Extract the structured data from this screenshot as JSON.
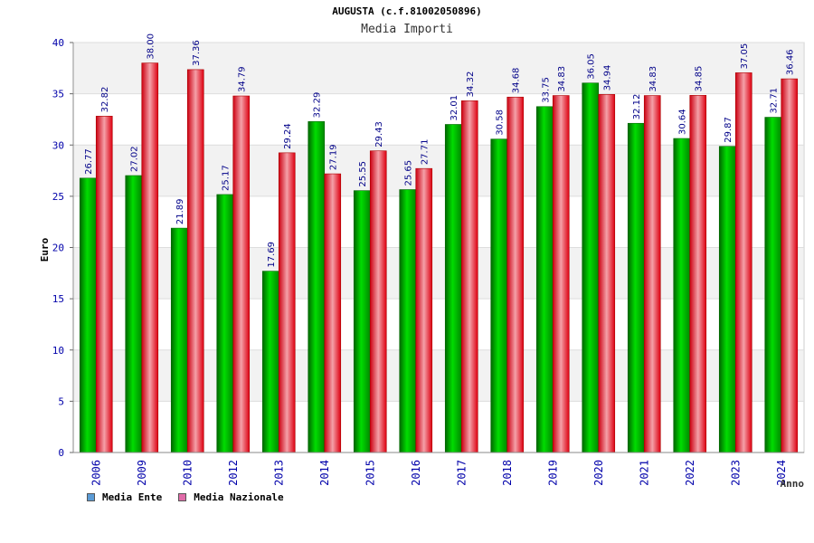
{
  "chart_data": {
    "type": "bar",
    "title": "AUGUSTA (c.f.81002050896)",
    "subtitle": "Media Importi",
    "xlabel": "Anno",
    "ylabel": "Euro",
    "ylim": [
      0,
      40
    ],
    "yticks": [
      0,
      5,
      10,
      15,
      20,
      25,
      30,
      35,
      40
    ],
    "grid": true,
    "legend_position": "bottom-left",
    "categories": [
      "2006",
      "2009",
      "2010",
      "2012",
      "2013",
      "2014",
      "2015",
      "2016",
      "2017",
      "2018",
      "2019",
      "2020",
      "2021",
      "2022",
      "2023",
      "2024"
    ],
    "series": [
      {
        "name": "Media Ente",
        "color": "#00cc00",
        "legend_color": "#5b9bd5",
        "values": [
          26.77,
          27.02,
          21.89,
          25.17,
          17.69,
          32.29,
          25.55,
          25.65,
          32.01,
          30.58,
          33.75,
          36.05,
          32.12,
          30.64,
          29.87,
          32.71
        ],
        "labels": [
          "26.77",
          "27.02",
          "21.89",
          "25.17",
          "17.69",
          "32.29",
          "25.55",
          "25.65",
          "32.01",
          "30.58",
          "33.75",
          "36.05",
          "32.12",
          "30.64",
          "29.87",
          "32.71"
        ]
      },
      {
        "name": "Media Nazionale",
        "color": "#ee2233",
        "legend_color": "#e06ba8",
        "values": [
          32.82,
          38.0,
          37.36,
          34.79,
          29.24,
          27.19,
          29.43,
          27.71,
          34.32,
          34.68,
          34.83,
          34.94,
          34.83,
          34.85,
          37.05,
          36.46
        ],
        "labels": [
          "32.82",
          "38.00",
          "37.36",
          "34.79",
          "29.24",
          "27.19",
          "29.43",
          "27.71",
          "34.32",
          "34.68",
          "34.83",
          "34.94",
          "34.83",
          "34.85",
          "37.05",
          "36.46"
        ]
      }
    ]
  }
}
